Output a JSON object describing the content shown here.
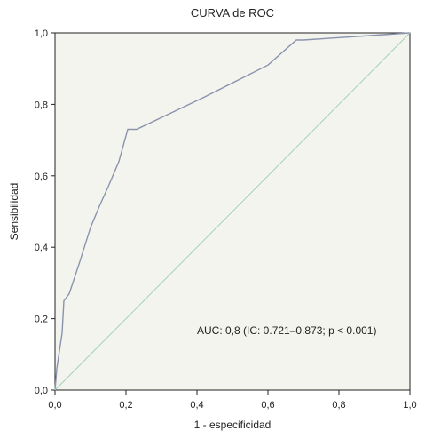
{
  "chart_data": {
    "type": "line",
    "title": "CURVA de ROC",
    "xlabel": "1 - especificidad",
    "ylabel": "Sensibilidad",
    "xlim": [
      0,
      1
    ],
    "ylim": [
      0,
      1
    ],
    "xticks": [
      "0,0",
      "0,2",
      "0,4",
      "0,6",
      "0,8",
      "1,0"
    ],
    "yticks": [
      "0,0",
      "0,2",
      "0,4",
      "0,6",
      "0,8",
      "1,0"
    ],
    "grid": false,
    "annotation": "AUC: 0,8 (IC: 0.721–0.873;  p < 0.001)",
    "colors": {
      "roc": "#8a93ad",
      "reference": "#9fd2b8",
      "plot_bg": "#f4f4ee",
      "frame": "#222222"
    },
    "series": [
      {
        "x": [
          0.0,
          0.005,
          0.02,
          0.025,
          0.04,
          0.07,
          0.1,
          0.125,
          0.15,
          0.18,
          0.205,
          0.215,
          0.23,
          0.42,
          0.6,
          0.68,
          0.7,
          0.85,
          1.0
        ],
        "y": [
          0.0,
          0.06,
          0.16,
          0.25,
          0.27,
          0.36,
          0.455,
          0.515,
          0.57,
          0.64,
          0.73,
          0.73,
          0.73,
          0.82,
          0.91,
          0.98,
          0.98,
          0.99,
          1.0
        ]
      },
      {
        "x": [
          0,
          1
        ],
        "y": [
          0,
          1
        ]
      }
    ]
  }
}
